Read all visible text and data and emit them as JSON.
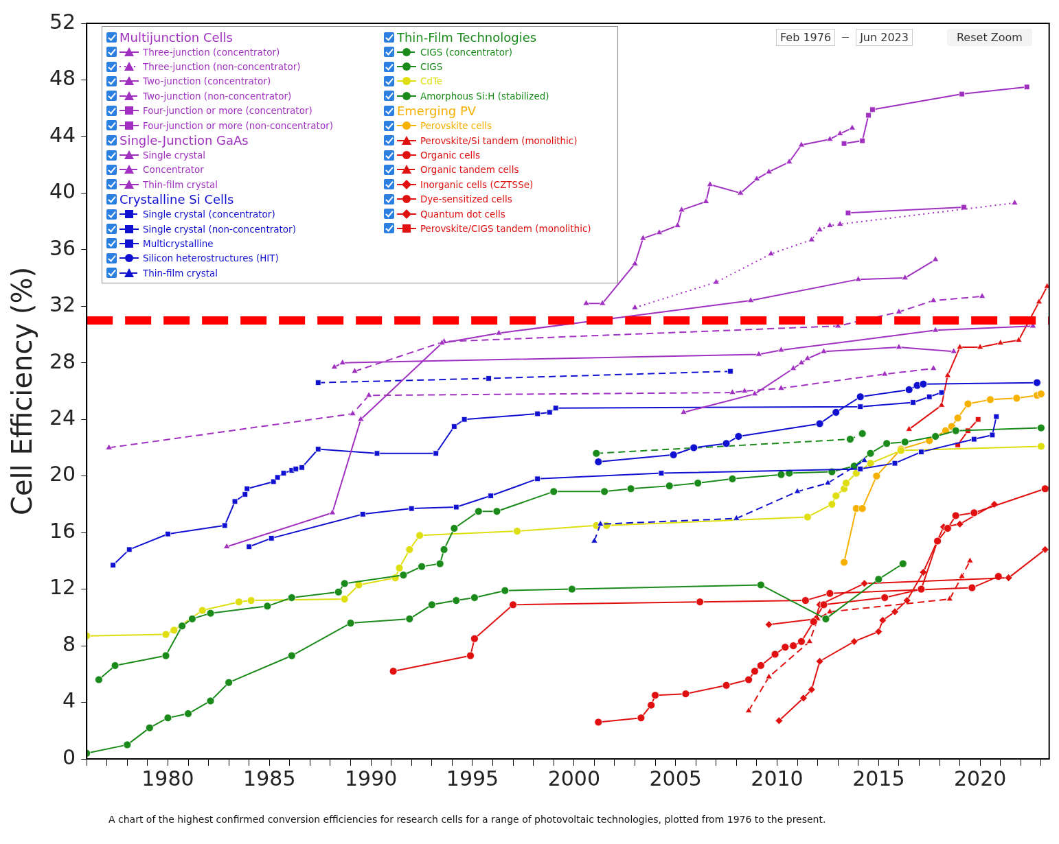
{
  "chart_data": {
    "type": "line",
    "ylabel": "Cell Efficiency (%)",
    "xlim": [
      1976,
      2023.4
    ],
    "ylim": [
      0,
      52
    ],
    "xticks": [
      {
        "value": 1976,
        "label": null
      },
      {
        "value": 1977,
        "label": null
      },
      {
        "value": 1978,
        "label": null
      },
      {
        "value": 1979,
        "label": null
      },
      1980,
      {
        "value": 1981,
        "label": null
      },
      {
        "value": 1982,
        "label": null
      },
      {
        "value": 1983,
        "label": null
      },
      {
        "value": 1984,
        "label": null
      },
      1985,
      {
        "value": 1986,
        "label": null
      },
      {
        "value": 1987,
        "label": null
      },
      {
        "value": 1988,
        "label": null
      },
      {
        "value": 1989,
        "label": null
      },
      1990,
      {
        "value": 1991,
        "label": null
      },
      {
        "value": 1992,
        "label": null
      },
      {
        "value": 1993,
        "label": null
      },
      {
        "value": 1994,
        "label": null
      },
      1995,
      {
        "value": 1996,
        "label": null
      },
      {
        "value": 1997,
        "label": null
      },
      {
        "value": 1998,
        "label": null
      },
      {
        "value": 1999,
        "label": null
      },
      2000,
      {
        "value": 2001,
        "label": null
      },
      {
        "value": 2002,
        "label": null
      },
      {
        "value": 2003,
        "label": null
      },
      {
        "value": 2004,
        "label": null
      },
      2005,
      {
        "value": 2006,
        "label": null
      },
      {
        "value": 2007,
        "label": null
      },
      {
        "value": 2008,
        "label": null
      },
      {
        "value": 2009,
        "label": null
      },
      2010,
      {
        "value": 2011,
        "label": null
      },
      {
        "value": 2012,
        "label": null
      },
      {
        "value": 2013,
        "label": null
      },
      {
        "value": 2014,
        "label": null
      },
      2015,
      {
        "value": 2016,
        "label": null
      },
      {
        "value": 2017,
        "label": null
      },
      {
        "value": 2018,
        "label": null
      },
      {
        "value": 2019,
        "label": null
      },
      2020,
      {
        "value": 2021,
        "label": null
      },
      {
        "value": 2022,
        "label": null
      },
      {
        "value": 2023,
        "label": null
      }
    ],
    "yticks": [
      0,
      4,
      8,
      12,
      16,
      20,
      24,
      28,
      32,
      36,
      40,
      44,
      48,
      52
    ],
    "grid": false,
    "legend": "top left",
    "ref_lines": [
      {
        "axis": "y",
        "value": 31,
        "color": "#ff0000",
        "line_style": "dashed"
      }
    ],
    "annotations": [
      "A chart of the highest confirmed conversion efficiencies for research cells for a range of photovoltaic technologies, plotted from 1976 to the present.",
      "Feb 1976",
      "Jun 2023",
      "Reset Zoom",
      "Multijunction Cells",
      "Single-Junction GaAs",
      "Crystalline Si Cells",
      "Thin-Film Technologies",
      "Emerging PV"
    ],
    "series": [
      {
        "name": "Three-junction (concentrator)",
        "color": "#a030c0",
        "marker": "triangle",
        "line_style": "solid",
        "x": [
          2000.6,
          2001.4,
          2003.0,
          2003.4,
          2004.2,
          2005.1,
          2005.3,
          2006.5,
          2006.7,
          2008.2,
          2009.0,
          2009.6,
          2010.6,
          2011.2,
          2012.6,
          2013.1,
          2013.7
        ],
        "values": [
          32.2,
          32.2,
          35.0,
          36.8,
          37.2,
          37.7,
          38.8,
          39.4,
          40.6,
          40.0,
          41.0,
          41.5,
          42.2,
          43.4,
          43.8,
          44.2,
          44.6
        ]
      },
      {
        "name": "Three-junction (non-concentrator)",
        "color": "#a030c0",
        "marker": "triangle",
        "line_style": "dotted",
        "x": [
          2003.0,
          2007.0,
          2009.7,
          2011.7,
          2012.1,
          2012.6,
          2013.1,
          2021.7
        ],
        "values": [
          31.9,
          33.7,
          35.7,
          36.7,
          37.4,
          37.7,
          37.8,
          39.3
        ]
      },
      {
        "name": "Two-junction (concentrator)",
        "color": "#a030c0",
        "marker": "triangle",
        "line_style": "solid",
        "x": [
          1982.9,
          1988.1,
          1989.5,
          1993.5,
          1996.3,
          2008.7,
          2014.0,
          2016.3,
          2017.8
        ],
        "values": [
          15.0,
          17.4,
          24.0,
          29.4,
          30.1,
          32.4,
          33.9,
          34.0,
          35.3
        ]
      },
      {
        "name": "Two-junction (non-concentrator)",
        "color": "#a030c0",
        "marker": "triangle",
        "line_style": "dashed",
        "x": [
          1989.2,
          1993.6,
          2013.0,
          2016.0,
          2017.7,
          2020.1
        ],
        "values": [
          27.4,
          29.5,
          30.6,
          31.6,
          32.4,
          32.7
        ]
      },
      {
        "name": "Four-junction or more (concentrator)",
        "color": "#a030c0",
        "marker": "square",
        "line_style": "solid",
        "x": [
          2013.3,
          2014.2,
          2014.5,
          2014.7,
          2019.1,
          2022.3
        ],
        "values": [
          43.5,
          43.7,
          45.5,
          45.9,
          47.0,
          47.5
        ]
      },
      {
        "name": "Four-junction or more (non-concentrator)",
        "color": "#a030c0",
        "marker": "square",
        "line_style": "solid",
        "x": [
          2013.5,
          2019.2
        ],
        "values": [
          38.6,
          39.0
        ]
      },
      {
        "name": "Single crystal",
        "color": "#a030c0",
        "marker": "triangle",
        "line_style": "solid",
        "x": [
          1988.2,
          1988.6,
          2009.1,
          2010.2,
          2017.8,
          2022.6
        ],
        "values": [
          27.7,
          28.0,
          28.6,
          28.9,
          30.3,
          30.6
        ]
      },
      {
        "name": "Concentrator",
        "color": "#a030c0",
        "marker": "triangle",
        "line_style": "dashed",
        "x": [
          1977.1,
          1989.1,
          1989.9,
          2007.8,
          2008.4,
          2010.2,
          2015.3,
          2017.7
        ],
        "values": [
          22.0,
          24.4,
          25.7,
          25.9,
          26.0,
          26.2,
          27.2,
          27.6
        ]
      },
      {
        "name": "Thin-film crystal",
        "color": "#a030c0",
        "marker": "triangle",
        "line_style": "solid",
        "x": [
          2005.4,
          2008.9,
          2010.8,
          2011.2,
          2011.5,
          2012.3,
          2016.0,
          2018.7
        ],
        "values": [
          24.5,
          25.8,
          27.6,
          28.0,
          28.3,
          28.8,
          29.1,
          28.8
        ]
      },
      {
        "name": "Single crystal (concentrator)",
        "color": "#1010d0",
        "marker": "square",
        "line_style": "dashed",
        "x": [
          1987.4,
          1995.8,
          2007.7
        ],
        "values": [
          26.6,
          26.9,
          27.4
        ]
      },
      {
        "name": "Single crystal (non-concentrator)",
        "color": "#1010d0",
        "marker": "square",
        "line_style": "solid",
        "x": [
          1977.3,
          1978.1,
          1980.0,
          1982.8,
          1983.3,
          1983.8,
          1983.9,
          1985.2,
          1985.4,
          1985.7,
          1986.1,
          1986.3,
          1986.6,
          1987.4,
          1990.3,
          1993.2,
          1994.1,
          1994.6,
          1998.2,
          1998.8,
          1999.1,
          2014.1,
          2016.7,
          2017.5,
          2018.1
        ],
        "values": [
          13.7,
          14.8,
          15.9,
          16.5,
          18.2,
          18.7,
          19.1,
          19.6,
          19.9,
          20.2,
          20.4,
          20.5,
          20.6,
          21.9,
          21.6,
          21.6,
          23.5,
          24.0,
          24.4,
          24.5,
          24.8,
          24.9,
          25.2,
          25.6,
          25.9
        ]
      },
      {
        "name": "Multicrystalline",
        "color": "#1010d0",
        "marker": "square",
        "line_style": "solid",
        "x": [
          1984.0,
          1985.1,
          1989.6,
          1992.0,
          1994.2,
          1995.9,
          1998.2,
          2004.3,
          2014.1,
          2015.8,
          2017.1,
          2019.7,
          2020.6,
          2020.8
        ],
        "values": [
          15.0,
          15.6,
          17.3,
          17.7,
          17.8,
          18.6,
          19.8,
          20.2,
          20.5,
          20.9,
          21.7,
          22.6,
          22.9,
          24.2
        ]
      },
      {
        "name": "Silicon heterostructures (HIT)",
        "color": "#1010d0",
        "marker": "circle",
        "line_style": "solid",
        "x": [
          2001.2,
          2004.9,
          2005.9,
          2007.5,
          2008.1,
          2012.1,
          2012.9,
          2014.1,
          2016.5,
          2016.9,
          2017.2,
          2022.8
        ],
        "values": [
          21.0,
          21.5,
          22.0,
          22.3,
          22.8,
          23.7,
          24.5,
          25.6,
          26.1,
          26.4,
          26.5,
          26.6
        ]
      },
      {
        "name": "Thin-film crystal",
        "color": "#1010d0",
        "marker": "triangle",
        "line_style": "dashed",
        "x": [
          2001.0,
          2001.3,
          2008.0,
          2011.0,
          2012.5,
          2014.3
        ],
        "values": [
          15.4,
          16.6,
          17.0,
          18.9,
          19.5,
          21.1
        ]
      },
      {
        "name": "CIGS (concentrator)",
        "color": "#1a8a1a",
        "marker": "circle",
        "line_style": "dashed",
        "x": [
          2001.1,
          2013.6,
          2014.2
        ],
        "values": [
          21.6,
          22.6,
          23.0
        ]
      },
      {
        "name": "CIGS",
        "color": "#1a8a1a",
        "marker": "circle",
        "line_style": "solid",
        "x": [
          1976.6,
          1977.4,
          1979.9,
          1980.7,
          1981.2,
          1982.1,
          1984.9,
          1986.1,
          1988.4,
          1988.7,
          1991.6,
          1992.5,
          1993.4,
          1993.6,
          1994.1,
          1995.3,
          1996.2,
          1999.0,
          2001.5,
          2002.8,
          2004.7,
          2006.1,
          2007.8,
          2010.2,
          2010.6,
          2012.7,
          2013.8,
          2014.6,
          2015.4,
          2016.3,
          2017.8,
          2018.8,
          2023.0
        ],
        "values": [
          5.6,
          6.6,
          7.3,
          9.4,
          9.9,
          10.3,
          10.8,
          11.4,
          11.8,
          12.4,
          13.0,
          13.6,
          13.8,
          14.8,
          16.3,
          17.5,
          17.5,
          18.9,
          18.9,
          19.1,
          19.3,
          19.5,
          19.8,
          20.1,
          20.2,
          20.3,
          20.7,
          21.6,
          22.3,
          22.4,
          22.8,
          23.2,
          23.4
        ]
      },
      {
        "name": "CdTe",
        "color": "#dede10",
        "marker": "circle",
        "line_style": "solid",
        "x": [
          1976.0,
          1979.9,
          1980.3,
          1981.7,
          1983.5,
          1984.1,
          1988.7,
          1989.4,
          1991.2,
          1991.4,
          1991.9,
          1992.4,
          1997.2,
          2001.1,
          2001.6,
          2011.5,
          2012.7,
          2012.9,
          2013.3,
          2013.4,
          2013.9,
          2014.6,
          2016.1,
          2023.0
        ],
        "values": [
          8.7,
          8.8,
          9.1,
          10.5,
          11.1,
          11.2,
          11.3,
          12.3,
          12.8,
          13.5,
          14.8,
          15.8,
          16.1,
          16.5,
          16.5,
          17.1,
          18.0,
          18.6,
          19.1,
          19.5,
          20.2,
          20.9,
          21.8,
          22.1
        ]
      },
      {
        "name": "Amorphous Si:H (stabilized)",
        "color": "#1a8a1a",
        "marker": "circle",
        "line_style": "solid",
        "x": [
          1976.0,
          1978.0,
          1979.1,
          1980.0,
          1981.0,
          1982.1,
          1983.0,
          1986.1,
          1989.0,
          1991.9,
          1993.0,
          1994.2,
          1995.1,
          1996.6,
          1999.9,
          2009.2,
          2012.4,
          2015.0,
          2016.2
        ],
        "values": [
          0.4,
          1.0,
          2.2,
          2.9,
          3.2,
          4.1,
          5.4,
          7.3,
          9.6,
          9.9,
          10.9,
          11.2,
          11.4,
          11.9,
          12.0,
          12.3,
          9.9,
          12.7,
          13.8
        ]
      },
      {
        "name": "Perovskite cells",
        "color": "#f5b000",
        "marker": "circle",
        "line_style": "solid",
        "x": [
          2013.3,
          2013.9,
          2014.2,
          2014.9,
          2016.1,
          2017.5,
          2018.3,
          2018.6,
          2018.9,
          2019.4,
          2020.5,
          2021.8,
          2022.8,
          2023.0
        ],
        "values": [
          13.9,
          17.7,
          17.7,
          20.0,
          21.9,
          22.5,
          23.2,
          23.5,
          24.1,
          25.1,
          25.4,
          25.5,
          25.7,
          25.8
        ]
      },
      {
        "name": "Perovskite/Si tandem (monolithic)",
        "color": "#e01010",
        "marker": "triangle",
        "line_style": "solid",
        "x": [
          2016.5,
          2018.1,
          2018.4,
          2019.0,
          2020.0,
          2021.0,
          2021.9,
          2022.9,
          2023.3
        ],
        "values": [
          23.3,
          25.0,
          27.1,
          29.1,
          29.1,
          29.4,
          29.6,
          32.3,
          33.4
        ]
      },
      {
        "name": "Organic cells",
        "color": "#e01010",
        "marker": "circle",
        "line_style": "solid",
        "x": [
          2001.2,
          2003.3,
          2003.8,
          2004.0,
          2005.5,
          2007.5,
          2008.6,
          2008.9,
          2009.2,
          2009.9,
          2010.4,
          2010.8,
          2011.2,
          2011.8,
          2012.3,
          2015.3,
          2017.1,
          2017.9,
          2018.4,
          2018.8,
          2019.7,
          2023.2
        ],
        "values": [
          2.6,
          2.9,
          3.8,
          4.5,
          4.6,
          5.2,
          5.6,
          6.2,
          6.6,
          7.4,
          7.9,
          8.0,
          8.3,
          9.7,
          10.9,
          11.4,
          12.0,
          15.4,
          16.3,
          17.2,
          17.4,
          19.1
        ]
      },
      {
        "name": "Organic tandem cells",
        "color": "#e01010",
        "marker": "triangle",
        "line_style": "dashed",
        "x": [
          2008.6,
          2009.6,
          2011.6,
          2012.0,
          2012.6,
          2018.5,
          2019.1,
          2019.5
        ],
        "values": [
          3.4,
          5.8,
          8.3,
          9.9,
          10.4,
          11.3,
          12.9,
          14.0
        ]
      },
      {
        "name": "Inorganic cells (CZTSSe)",
        "color": "#e01010",
        "marker": "diamond",
        "line_style": "solid",
        "x": [
          2009.6,
          2011.9,
          2012.1,
          2014.3,
          2021.4,
          2023.2
        ],
        "values": [
          9.5,
          9.9,
          10.9,
          12.4,
          12.8,
          14.8
        ]
      },
      {
        "name": "Dye-sensitized cells",
        "color": "#e01010",
        "marker": "circle",
        "line_style": "solid",
        "x": [
          1991.1,
          1994.9,
          1995.1,
          1997.0,
          2006.2,
          2011.4,
          2012.6,
          2019.6,
          2020.9
        ],
        "values": [
          6.2,
          7.3,
          8.5,
          10.9,
          11.1,
          11.2,
          11.7,
          12.1,
          12.9
        ]
      },
      {
        "name": "Quantum dot cells",
        "color": "#e01010",
        "marker": "diamond",
        "line_style": "solid",
        "x": [
          2010.1,
          2011.3,
          2011.7,
          2012.1,
          2013.8,
          2015.0,
          2015.2,
          2015.8,
          2016.4,
          2017.2,
          2018.2,
          2019.0,
          2020.7
        ],
        "values": [
          2.7,
          4.3,
          4.9,
          6.9,
          8.3,
          9.0,
          9.8,
          10.4,
          11.2,
          13.2,
          16.4,
          16.6,
          18.0
        ]
      },
      {
        "name": "Perovskite/CIGS tandem (monolithic)",
        "color": "#e01010",
        "marker": "square",
        "line_style": "solid",
        "x": [
          2018.9,
          2019.4,
          2019.9
        ],
        "values": [
          22.2,
          23.2,
          24.0
        ]
      }
    ]
  }
}
